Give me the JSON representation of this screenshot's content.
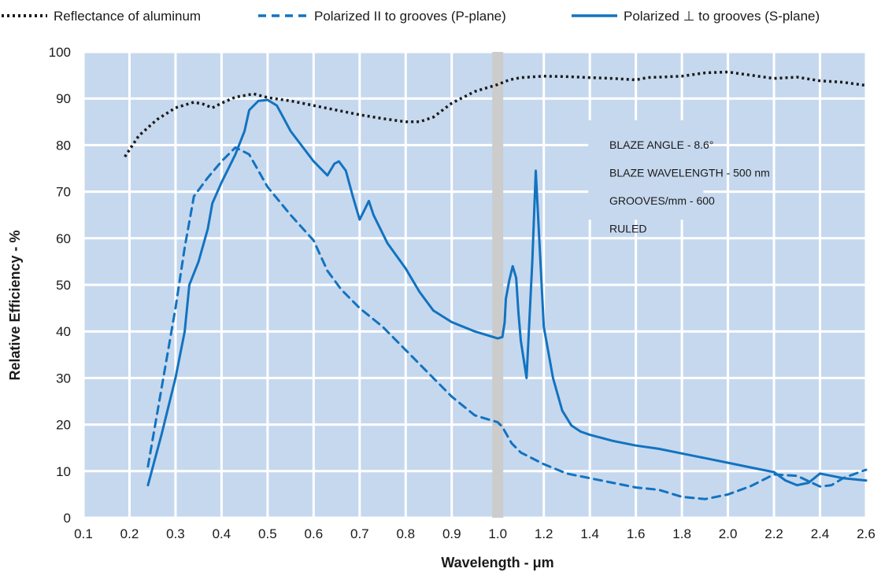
{
  "chart_data": {
    "type": "line",
    "xlabel": "Wavelength - μm",
    "ylabel": "Relative Efficiency - %",
    "xlim": [
      0.1,
      2.6
    ],
    "ylim": [
      0,
      100
    ],
    "grid": true,
    "x_ticks": [
      "0.1",
      "0.2",
      "0.3",
      "0.4",
      "0.5",
      "0.6",
      "0.7",
      "0.8",
      "0.9",
      "1.0",
      "1.2",
      "1.4",
      "1.6",
      "1.8",
      "2.0",
      "2.2",
      "2.4",
      "2.6"
    ],
    "y_ticks": [
      "0",
      "10",
      "20",
      "30",
      "40",
      "50",
      "60",
      "70",
      "80",
      "90",
      "100"
    ],
    "legend_position": "top",
    "highlight_band": {
      "at": "1.0",
      "color": "#cccccc"
    },
    "colors": {
      "plot_bg": "#c6d8ee",
      "grid": "#ffffff",
      "aluminum": "#1a1a1a",
      "series": "#1273c0"
    },
    "annotations": [
      "BLAZE ANGLE - 8.6°",
      "BLAZE WAVELENGTH - 500 nm",
      "GROOVES/mm - 600",
      "RULED"
    ],
    "series": [
      {
        "name": "Reflectance of aluminum",
        "style": "dotted",
        "points": [
          [
            0.19,
            77.5
          ],
          [
            0.22,
            82
          ],
          [
            0.26,
            85.5
          ],
          [
            0.3,
            88
          ],
          [
            0.34,
            89.2
          ],
          [
            0.36,
            88.8
          ],
          [
            0.38,
            88
          ],
          [
            0.4,
            89
          ],
          [
            0.43,
            90.3
          ],
          [
            0.47,
            91
          ],
          [
            0.5,
            90.2
          ],
          [
            0.55,
            89.5
          ],
          [
            0.6,
            88.5
          ],
          [
            0.65,
            87.5
          ],
          [
            0.7,
            86.5
          ],
          [
            0.75,
            85.7
          ],
          [
            0.8,
            85
          ],
          [
            0.83,
            85
          ],
          [
            0.86,
            86
          ],
          [
            0.9,
            89
          ],
          [
            0.95,
            91.5
          ],
          [
            1.0,
            93
          ],
          [
            1.05,
            94
          ],
          [
            1.1,
            94.5
          ],
          [
            1.2,
            94.8
          ],
          [
            1.3,
            94.7
          ],
          [
            1.4,
            94.5
          ],
          [
            1.5,
            94.3
          ],
          [
            1.6,
            94
          ],
          [
            1.65,
            94.5
          ],
          [
            1.8,
            94.8
          ],
          [
            1.9,
            95.5
          ],
          [
            2.0,
            95.7
          ],
          [
            2.1,
            95
          ],
          [
            2.2,
            94.3
          ],
          [
            2.3,
            94.6
          ],
          [
            2.4,
            93.8
          ],
          [
            2.5,
            93.5
          ],
          [
            2.6,
            92.8
          ]
        ]
      },
      {
        "name": "Polarized II to grooves (P-plane)",
        "style": "dashed",
        "points": [
          [
            0.24,
            11
          ],
          [
            0.27,
            28
          ],
          [
            0.3,
            45
          ],
          [
            0.32,
            58
          ],
          [
            0.34,
            69
          ],
          [
            0.37,
            73
          ],
          [
            0.4,
            76.5
          ],
          [
            0.43,
            79.5
          ],
          [
            0.46,
            78
          ],
          [
            0.5,
            71
          ],
          [
            0.55,
            65
          ],
          [
            0.6,
            59.5
          ],
          [
            0.63,
            53
          ],
          [
            0.66,
            49
          ],
          [
            0.7,
            45
          ],
          [
            0.75,
            41
          ],
          [
            0.8,
            36
          ],
          [
            0.85,
            31
          ],
          [
            0.9,
            26
          ],
          [
            0.95,
            22
          ],
          [
            1.0,
            20.5
          ],
          [
            1.02,
            19.5
          ],
          [
            1.06,
            16
          ],
          [
            1.1,
            14
          ],
          [
            1.2,
            11.5
          ],
          [
            1.3,
            9.5
          ],
          [
            1.4,
            8.5
          ],
          [
            1.5,
            7.5
          ],
          [
            1.6,
            6.5
          ],
          [
            1.7,
            6
          ],
          [
            1.8,
            4.5
          ],
          [
            1.9,
            4
          ],
          [
            2.0,
            5
          ],
          [
            2.1,
            6.8
          ],
          [
            2.2,
            9.3
          ],
          [
            2.3,
            9
          ],
          [
            2.4,
            6.7
          ],
          [
            2.45,
            7
          ],
          [
            2.5,
            8.5
          ],
          [
            2.6,
            10.3
          ]
        ]
      },
      {
        "name": "Polarized ⊥ to grooves (S-plane)",
        "style": "solid",
        "points": [
          [
            0.24,
            7
          ],
          [
            0.27,
            18
          ],
          [
            0.3,
            30
          ],
          [
            0.32,
            40
          ],
          [
            0.33,
            50
          ],
          [
            0.35,
            55
          ],
          [
            0.37,
            62
          ],
          [
            0.38,
            67.5
          ],
          [
            0.4,
            72
          ],
          [
            0.43,
            78
          ],
          [
            0.45,
            83
          ],
          [
            0.46,
            87.5
          ],
          [
            0.48,
            89.5
          ],
          [
            0.5,
            89.7
          ],
          [
            0.52,
            88.5
          ],
          [
            0.55,
            83
          ],
          [
            0.6,
            76.5
          ],
          [
            0.63,
            73.5
          ],
          [
            0.645,
            76
          ],
          [
            0.655,
            76.5
          ],
          [
            0.67,
            74.5
          ],
          [
            0.685,
            69
          ],
          [
            0.7,
            64
          ],
          [
            0.71,
            66
          ],
          [
            0.72,
            68
          ],
          [
            0.73,
            65
          ],
          [
            0.76,
            59
          ],
          [
            0.8,
            53.5
          ],
          [
            0.83,
            48.5
          ],
          [
            0.86,
            44.5
          ],
          [
            0.9,
            42
          ],
          [
            0.95,
            40
          ],
          [
            1.0,
            38.5
          ],
          [
            1.02,
            38.8
          ],
          [
            1.03,
            42
          ],
          [
            1.035,
            47
          ],
          [
            1.05,
            51
          ],
          [
            1.065,
            54
          ],
          [
            1.08,
            51.5
          ],
          [
            1.09,
            44
          ],
          [
            1.1,
            38
          ],
          [
            1.125,
            30
          ],
          [
            1.15,
            55
          ],
          [
            1.165,
            74.5
          ],
          [
            1.18,
            60
          ],
          [
            1.2,
            41
          ],
          [
            1.24,
            30
          ],
          [
            1.28,
            23
          ],
          [
            1.32,
            19.8
          ],
          [
            1.36,
            18.5
          ],
          [
            1.4,
            17.8
          ],
          [
            1.5,
            16.5
          ],
          [
            1.6,
            15.5
          ],
          [
            1.7,
            14.8
          ],
          [
            1.8,
            13.8
          ],
          [
            1.9,
            12.8
          ],
          [
            2.0,
            11.8
          ],
          [
            2.1,
            10.8
          ],
          [
            2.2,
            9.8
          ],
          [
            2.25,
            8
          ],
          [
            2.3,
            7
          ],
          [
            2.35,
            7.5
          ],
          [
            2.4,
            9.5
          ],
          [
            2.5,
            8.5
          ],
          [
            2.6,
            8
          ]
        ]
      }
    ]
  }
}
